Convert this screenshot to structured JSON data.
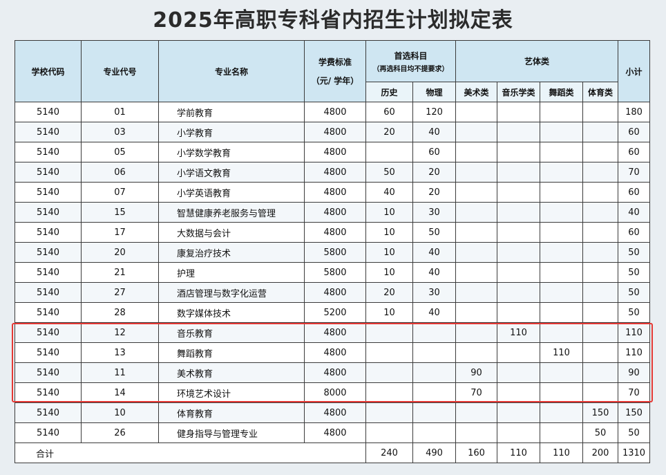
{
  "title": "2025年高职专科省内招生计划拟定表",
  "headers": {
    "school_code": "学校代码",
    "major_code": "专业代号",
    "major_name": "专业名称",
    "tuition_line1": "学费标准",
    "tuition_line2": "（元/ 学年）",
    "first_subject": "首选科目",
    "first_subject_note": "（再选科目均不提要求）",
    "history": "历史",
    "physics": "物理",
    "arts_sports": "艺体类",
    "fine_arts": "美术类",
    "music": "音乐学类",
    "dance": "舞蹈类",
    "sports": "体育类",
    "subtotal": "小计"
  },
  "rows": [
    {
      "school": "5140",
      "code": "01",
      "name": "学前教育",
      "fee": "4800",
      "history": "60",
      "physics": "120",
      "fine": "",
      "music": "",
      "dance": "",
      "sports": "",
      "total": "180"
    },
    {
      "school": "5140",
      "code": "03",
      "name": "小学教育",
      "fee": "4800",
      "history": "20",
      "physics": "40",
      "fine": "",
      "music": "",
      "dance": "",
      "sports": "",
      "total": "60"
    },
    {
      "school": "5140",
      "code": "05",
      "name": "小学数学教育",
      "fee": "4800",
      "history": "",
      "physics": "60",
      "fine": "",
      "music": "",
      "dance": "",
      "sports": "",
      "total": "60"
    },
    {
      "school": "5140",
      "code": "06",
      "name": "小学语文教育",
      "fee": "4800",
      "history": "50",
      "physics": "20",
      "fine": "",
      "music": "",
      "dance": "",
      "sports": "",
      "total": "70"
    },
    {
      "school": "5140",
      "code": "07",
      "name": "小学英语教育",
      "fee": "4800",
      "history": "40",
      "physics": "20",
      "fine": "",
      "music": "",
      "dance": "",
      "sports": "",
      "total": "60"
    },
    {
      "school": "5140",
      "code": "15",
      "name": "智慧健康养老服务与管理",
      "fee": "4800",
      "history": "10",
      "physics": "30",
      "fine": "",
      "music": "",
      "dance": "",
      "sports": "",
      "total": "40"
    },
    {
      "school": "5140",
      "code": "17",
      "name": "大数据与会计",
      "fee": "4800",
      "history": "10",
      "physics": "50",
      "fine": "",
      "music": "",
      "dance": "",
      "sports": "",
      "total": "60"
    },
    {
      "school": "5140",
      "code": "20",
      "name": "康复治疗技术",
      "fee": "5800",
      "history": "10",
      "physics": "40",
      "fine": "",
      "music": "",
      "dance": "",
      "sports": "",
      "total": "50"
    },
    {
      "school": "5140",
      "code": "21",
      "name": "护理",
      "fee": "5800",
      "history": "10",
      "physics": "40",
      "fine": "",
      "music": "",
      "dance": "",
      "sports": "",
      "total": "50"
    },
    {
      "school": "5140",
      "code": "27",
      "name": "酒店管理与数字化运营",
      "fee": "4800",
      "history": "20",
      "physics": "30",
      "fine": "",
      "music": "",
      "dance": "",
      "sports": "",
      "total": "50"
    },
    {
      "school": "5140",
      "code": "28",
      "name": "数字媒体技术",
      "fee": "5200",
      "history": "10",
      "physics": "40",
      "fine": "",
      "music": "",
      "dance": "",
      "sports": "",
      "total": "50"
    },
    {
      "school": "5140",
      "code": "12",
      "name": "音乐教育",
      "fee": "4800",
      "history": "",
      "physics": "",
      "fine": "",
      "music": "110",
      "dance": "",
      "sports": "",
      "total": "110"
    },
    {
      "school": "5140",
      "code": "13",
      "name": "舞蹈教育",
      "fee": "4800",
      "history": "",
      "physics": "",
      "fine": "",
      "music": "",
      "dance": "110",
      "sports": "",
      "total": "110"
    },
    {
      "school": "5140",
      "code": "11",
      "name": "美术教育",
      "fee": "4800",
      "history": "",
      "physics": "",
      "fine": "90",
      "music": "",
      "dance": "",
      "sports": "",
      "total": "90"
    },
    {
      "school": "5140",
      "code": "14",
      "name": "环境艺术设计",
      "fee": "8000",
      "history": "",
      "physics": "",
      "fine": "70",
      "music": "",
      "dance": "",
      "sports": "",
      "total": "70"
    },
    {
      "school": "5140",
      "code": "10",
      "name": "体育教育",
      "fee": "4800",
      "history": "",
      "physics": "",
      "fine": "",
      "music": "",
      "dance": "",
      "sports": "150",
      "total": "150"
    },
    {
      "school": "5140",
      "code": "26",
      "name": "健身指导与管理专业",
      "fee": "4800",
      "history": "",
      "physics": "",
      "fine": "",
      "music": "",
      "dance": "",
      "sports": "50",
      "total": "50"
    }
  ],
  "totals": {
    "label": "合计",
    "history": "240",
    "physics": "490",
    "fine": "160",
    "music": "110",
    "dance": "110",
    "sports": "200",
    "total": "1310"
  },
  "colors": {
    "header_bg": "#cfe6f2",
    "highlight_border": "#e53935",
    "page_bg": "#e9eef2"
  }
}
